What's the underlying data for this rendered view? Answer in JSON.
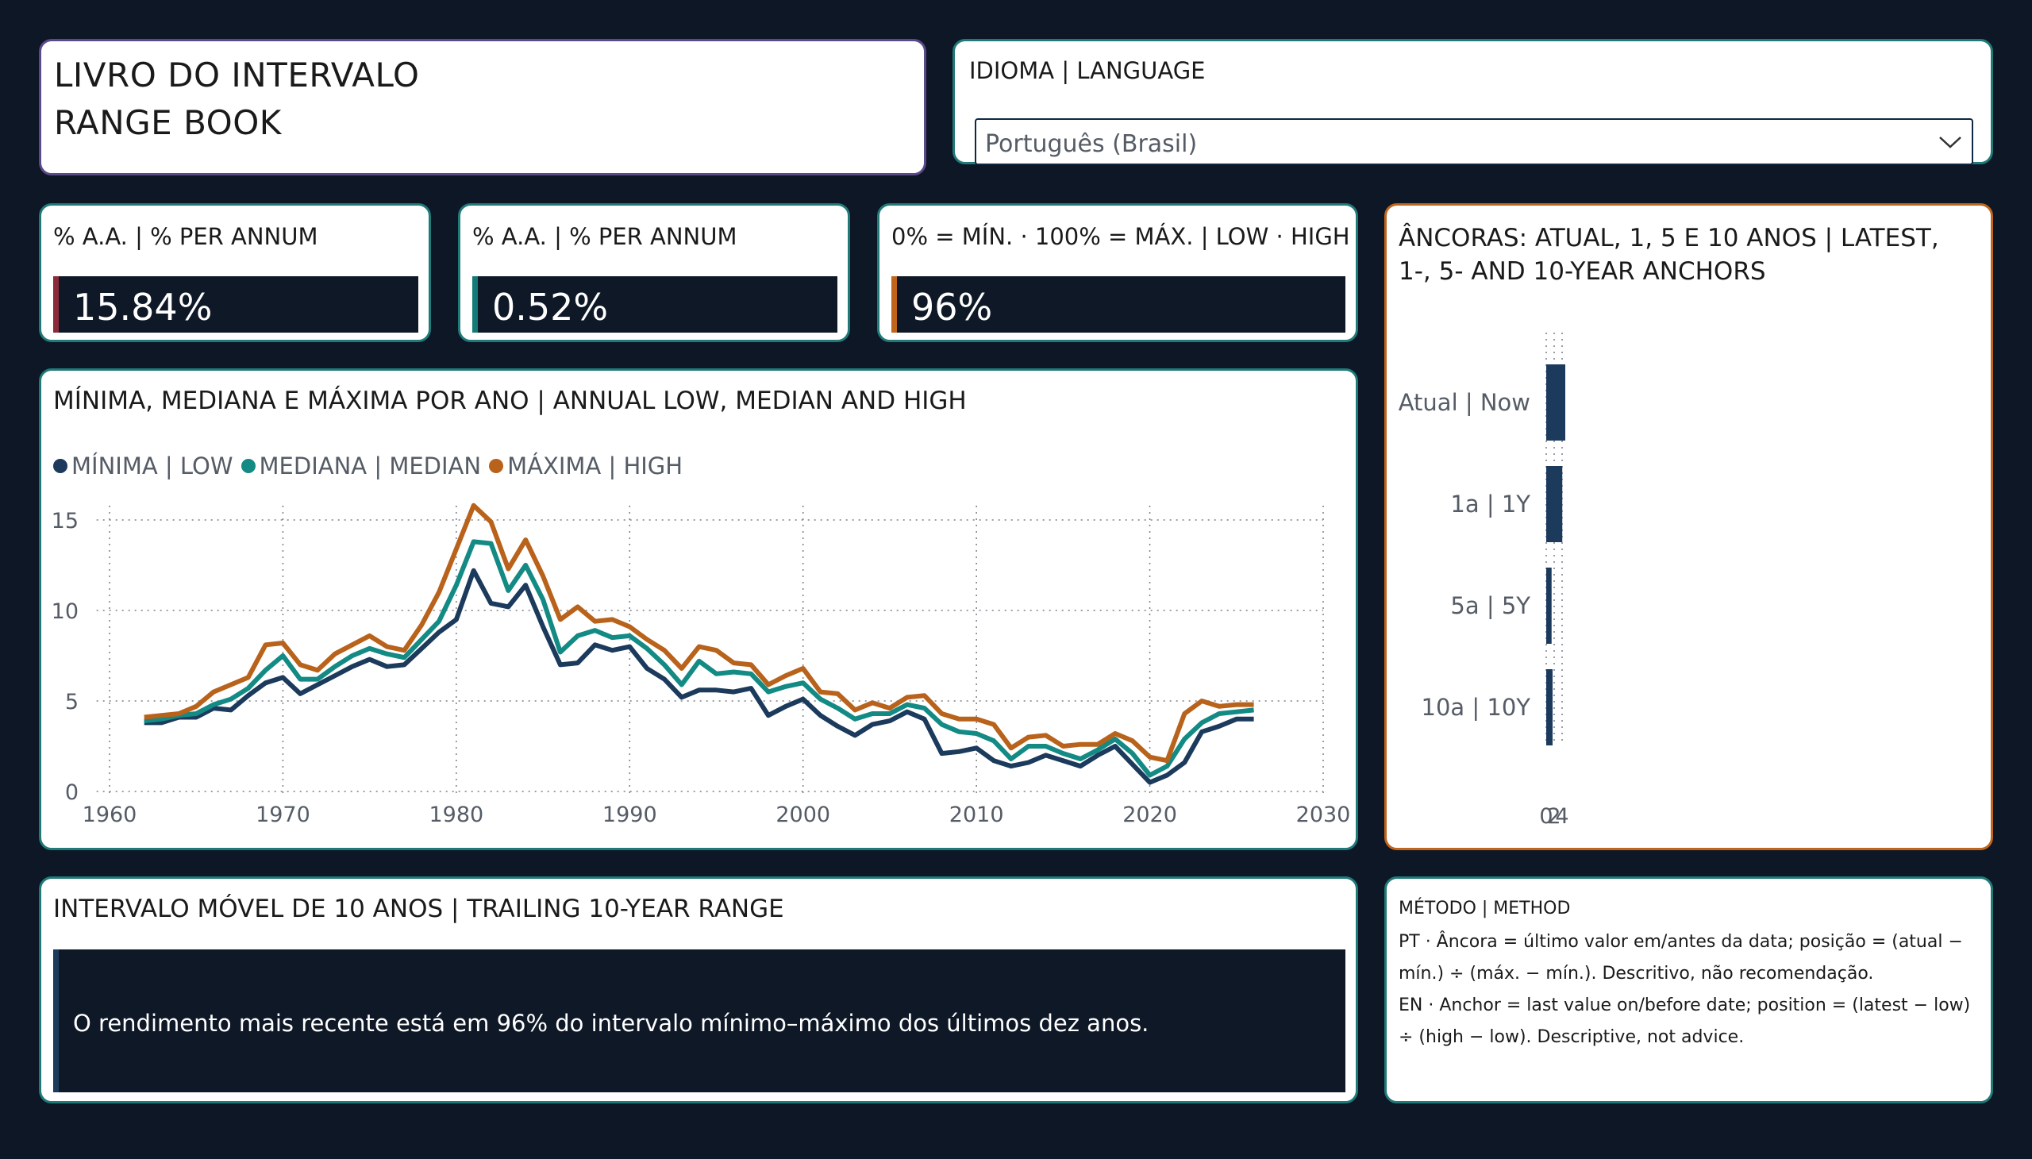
{
  "title": {
    "line1": "LIVRO DO INTERVALO",
    "line2": "RANGE BOOK"
  },
  "language": {
    "label": "IDIOMA | LANGUAGE",
    "selected": "Português (Brasil)"
  },
  "kpis": [
    {
      "label": "% A.A. | % PER ANNUM",
      "value": "15.84%",
      "accent": "#8b2a3a"
    },
    {
      "label": "% A.A. | % PER ANNUM",
      "value": "0.52%",
      "accent": "#137a78"
    },
    {
      "label": "0% = MÍN. · 100% = MÁX. | LOW · HIGH",
      "value": "96%",
      "accent": "#c0651c"
    }
  ],
  "annual_chart": {
    "title": "MÍNIMA, MEDIANA E MÁXIMA POR ANO | ANNUAL LOW, MEDIAN AND HIGH",
    "legend": [
      {
        "label": "MÍNIMA | LOW",
        "color": "#1b3a5c"
      },
      {
        "label": "MEDIANA | MEDIAN",
        "color": "#138a84"
      },
      {
        "label": "MÁXIMA | HIGH",
        "color": "#b8621b"
      }
    ]
  },
  "anchors": {
    "title": "ÂNCORAS: ATUAL, 1, 5 E 10 ANOS | LATEST, 1-, 5- AND 10-YEAR ANCHORS"
  },
  "range": {
    "title": "INTERVALO MÓVEL DE 10 ANOS | TRAILING 10-YEAR RANGE",
    "text": "O rendimento mais recente está em 96% do intervalo mínimo–máximo dos últimos dez anos."
  },
  "method": {
    "title": "MÉTODO | METHOD",
    "pt": "PT · Âncora = último valor em/antes da data; posição = (atual − mín.) ÷ (máx. − mín.). Descritivo, não recomendação.",
    "en": "EN · Anchor = last value on/before date; position = (latest − low) ÷ (high − low). Descriptive, not advice."
  },
  "chart_data": [
    {
      "type": "line",
      "title": "MÍNIMA, MEDIANA E MÁXIMA POR ANO | ANNUAL LOW, MEDIAN AND HIGH",
      "xlabel": "",
      "ylabel": "",
      "xlim": [
        1960,
        2030
      ],
      "ylim": [
        0,
        16
      ],
      "xticks": [
        1960,
        1970,
        1980,
        1990,
        2000,
        2010,
        2020,
        2030
      ],
      "yticks": [
        0,
        5,
        10,
        15
      ],
      "grid": true,
      "legend_position": "top-left",
      "x": [
        1962,
        1963,
        1964,
        1965,
        1966,
        1967,
        1968,
        1969,
        1970,
        1971,
        1972,
        1973,
        1974,
        1975,
        1976,
        1977,
        1978,
        1979,
        1980,
        1981,
        1982,
        1983,
        1984,
        1985,
        1986,
        1987,
        1988,
        1989,
        1990,
        1991,
        1992,
        1993,
        1994,
        1995,
        1996,
        1997,
        1998,
        1999,
        2000,
        2001,
        2002,
        2003,
        2004,
        2005,
        2006,
        2007,
        2008,
        2009,
        2010,
        2011,
        2012,
        2013,
        2014,
        2015,
        2016,
        2017,
        2018,
        2019,
        2020,
        2021,
        2022,
        2023,
        2024,
        2025,
        2026
      ],
      "series": [
        {
          "name": "MÍNIMA | LOW",
          "color": "#1b3a5c",
          "values": [
            3.8,
            3.8,
            4.1,
            4.1,
            4.6,
            4.5,
            5.3,
            6.0,
            6.3,
            5.4,
            5.9,
            6.4,
            6.9,
            7.3,
            6.9,
            7.0,
            7.9,
            8.8,
            9.5,
            12.2,
            10.4,
            10.2,
            11.4,
            9.1,
            7.0,
            7.1,
            8.1,
            7.8,
            8.0,
            6.8,
            6.2,
            5.2,
            5.6,
            5.6,
            5.5,
            5.7,
            4.2,
            4.7,
            5.1,
            4.2,
            3.6,
            3.1,
            3.7,
            3.9,
            4.4,
            4.0,
            2.1,
            2.2,
            2.4,
            1.7,
            1.4,
            1.6,
            2.0,
            1.7,
            1.4,
            2.0,
            2.5,
            1.5,
            0.5,
            0.9,
            1.6,
            3.3,
            3.6,
            4.0,
            4.0
          ]
        },
        {
          "name": "MEDIANA | MEDIAN",
          "color": "#138a84",
          "values": [
            3.9,
            4.0,
            4.2,
            4.3,
            4.8,
            5.1,
            5.7,
            6.7,
            7.5,
            6.2,
            6.2,
            6.9,
            7.5,
            7.9,
            7.6,
            7.4,
            8.4,
            9.4,
            11.4,
            13.8,
            13.7,
            11.1,
            12.5,
            10.6,
            7.7,
            8.6,
            8.9,
            8.5,
            8.6,
            7.9,
            7.0,
            5.9,
            7.2,
            6.5,
            6.6,
            6.5,
            5.5,
            5.8,
            6.0,
            5.1,
            4.6,
            4.0,
            4.3,
            4.3,
            4.8,
            4.6,
            3.7,
            3.3,
            3.2,
            2.8,
            1.8,
            2.5,
            2.5,
            2.1,
            1.8,
            2.3,
            2.9,
            2.1,
            0.9,
            1.4,
            2.9,
            3.8,
            4.3,
            4.4,
            4.5
          ]
        },
        {
          "name": "MÁXIMA | HIGH",
          "color": "#b8621b",
          "values": [
            4.1,
            4.2,
            4.3,
            4.7,
            5.5,
            5.9,
            6.3,
            8.1,
            8.2,
            7.0,
            6.7,
            7.6,
            8.1,
            8.6,
            8.0,
            7.8,
            9.2,
            11.0,
            13.4,
            15.8,
            14.9,
            12.3,
            13.9,
            11.9,
            9.5,
            10.2,
            9.4,
            9.5,
            9.1,
            8.4,
            7.8,
            6.8,
            8.0,
            7.8,
            7.1,
            7.0,
            5.9,
            6.4,
            6.8,
            5.5,
            5.4,
            4.5,
            4.9,
            4.6,
            5.2,
            5.3,
            4.3,
            4.0,
            4.0,
            3.7,
            2.4,
            3.0,
            3.1,
            2.5,
            2.6,
            2.6,
            3.2,
            2.8,
            1.9,
            1.7,
            4.3,
            5.0,
            4.7,
            4.8,
            4.8
          ]
        }
      ]
    },
    {
      "type": "bar",
      "orientation": "horizontal",
      "title": "ÂNCORAS: ATUAL, 1, 5 E 10 ANOS | LATEST, 1-, 5- AND 10-YEAR ANCHORS",
      "categories": [
        "Atual | Now",
        "1a | 1Y",
        "5a | 5Y",
        "10a | 10Y"
      ],
      "values": [
        4.8,
        4.05,
        1.35,
        1.6
      ],
      "xlim": [
        0,
        4.8
      ],
      "xticks": [
        0,
        2,
        4
      ],
      "grid": true,
      "color": "#1b3a5c"
    }
  ]
}
